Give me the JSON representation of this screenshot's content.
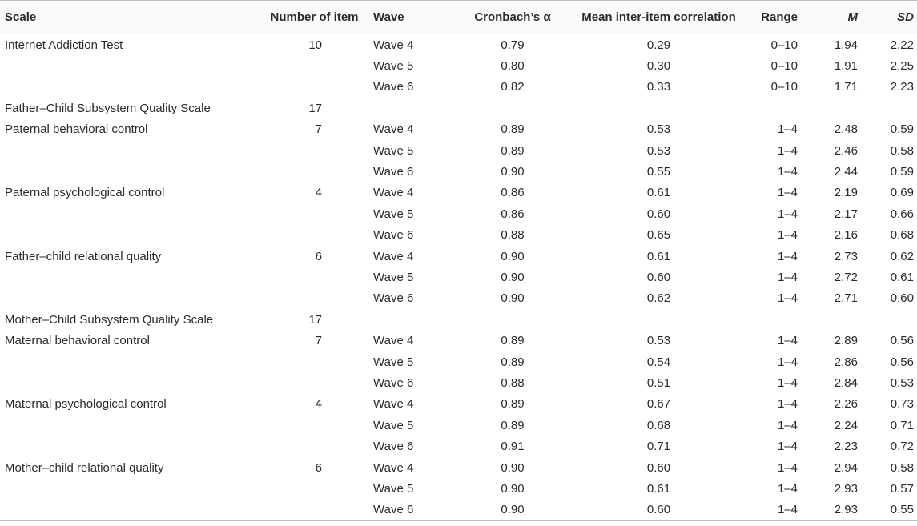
{
  "table": {
    "headers": {
      "scale": "Scale",
      "items": "Number of item",
      "wave": "Wave",
      "alpha": "Cronbach’s α",
      "mean_corr": "Mean inter-item correlation",
      "range": "Range",
      "m": "M",
      "sd": "SD"
    },
    "rows": [
      {
        "scale": "Internet Addiction Test",
        "items": "10",
        "wave": "Wave 4",
        "alpha": "0.79",
        "corr": "0.29",
        "range": "0–10",
        "m": "1.94",
        "sd": "2.22"
      },
      {
        "scale": "",
        "items": "",
        "wave": "Wave 5",
        "alpha": "0.80",
        "corr": "0.30",
        "range": "0–10",
        "m": "1.91",
        "sd": "2.25"
      },
      {
        "scale": "",
        "items": "",
        "wave": "Wave 6",
        "alpha": "0.82",
        "corr": "0.33",
        "range": "0–10",
        "m": "1.71",
        "sd": "2.23"
      },
      {
        "scale": "Father–Child Subsystem Quality Scale",
        "items": "17",
        "wave": "",
        "alpha": "",
        "corr": "",
        "range": "",
        "m": "",
        "sd": ""
      },
      {
        "scale": "Paternal behavioral control",
        "items": "7",
        "wave": "Wave 4",
        "alpha": "0.89",
        "corr": "0.53",
        "range": "1–4",
        "m": "2.48",
        "sd": "0.59"
      },
      {
        "scale": "",
        "items": "",
        "wave": "Wave 5",
        "alpha": "0.89",
        "corr": "0.53",
        "range": "1–4",
        "m": "2.46",
        "sd": "0.58"
      },
      {
        "scale": "",
        "items": "",
        "wave": "Wave 6",
        "alpha": "0.90",
        "corr": "0.55",
        "range": "1–4",
        "m": "2.44",
        "sd": "0.59"
      },
      {
        "scale": "Paternal psychological control",
        "items": "4",
        "wave": "Wave 4",
        "alpha": "0.86",
        "corr": "0.61",
        "range": "1–4",
        "m": "2.19",
        "sd": "0.69"
      },
      {
        "scale": "",
        "items": "",
        "wave": "Wave 5",
        "alpha": "0.86",
        "corr": "0.60",
        "range": "1–4",
        "m": "2.17",
        "sd": "0.66"
      },
      {
        "scale": "",
        "items": "",
        "wave": "Wave 6",
        "alpha": "0.88",
        "corr": "0.65",
        "range": "1–4",
        "m": "2.16",
        "sd": "0.68"
      },
      {
        "scale": "Father–child relational quality",
        "items": "6",
        "wave": "Wave 4",
        "alpha": "0.90",
        "corr": "0.61",
        "range": "1–4",
        "m": "2.73",
        "sd": "0.62"
      },
      {
        "scale": "",
        "items": "",
        "wave": "Wave 5",
        "alpha": "0.90",
        "corr": "0.60",
        "range": "1–4",
        "m": "2.72",
        "sd": "0.61"
      },
      {
        "scale": "",
        "items": "",
        "wave": "Wave 6",
        "alpha": "0.90",
        "corr": "0.62",
        "range": "1–4",
        "m": "2.71",
        "sd": "0.60"
      },
      {
        "scale": "Mother–Child Subsystem Quality Scale",
        "items": "17",
        "wave": "",
        "alpha": "",
        "corr": "",
        "range": "",
        "m": "",
        "sd": ""
      },
      {
        "scale": "Maternal behavioral control",
        "items": "7",
        "wave": "Wave 4",
        "alpha": "0.89",
        "corr": "0.53",
        "range": "1–4",
        "m": "2.89",
        "sd": "0.56"
      },
      {
        "scale": "",
        "items": "",
        "wave": "Wave 5",
        "alpha": "0.89",
        "corr": "0.54",
        "range": "1–4",
        "m": "2.86",
        "sd": "0.56"
      },
      {
        "scale": "",
        "items": "",
        "wave": "Wave 6",
        "alpha": "0.88",
        "corr": "0.51",
        "range": "1–4",
        "m": "2.84",
        "sd": "0.53"
      },
      {
        "scale": "Maternal psychological control",
        "items": "4",
        "wave": "Wave 4",
        "alpha": "0.89",
        "corr": "0.67",
        "range": "1–4",
        "m": "2.26",
        "sd": "0.73"
      },
      {
        "scale": "",
        "items": "",
        "wave": "Wave 5",
        "alpha": "0.89",
        "corr": "0.68",
        "range": "1–4",
        "m": "2.24",
        "sd": "0.71"
      },
      {
        "scale": "",
        "items": "",
        "wave": "Wave 6",
        "alpha": "0.91",
        "corr": "0.71",
        "range": "1–4",
        "m": "2.23",
        "sd": "0.72"
      },
      {
        "scale": "Mother–child relational quality",
        "items": "6",
        "wave": "Wave 4",
        "alpha": "0.90",
        "corr": "0.60",
        "range": "1–4",
        "m": "2.94",
        "sd": "0.58"
      },
      {
        "scale": "",
        "items": "",
        "wave": "Wave 5",
        "alpha": "0.90",
        "corr": "0.61",
        "range": "1–4",
        "m": "2.93",
        "sd": "0.57"
      },
      {
        "scale": "",
        "items": "",
        "wave": "Wave 6",
        "alpha": "0.90",
        "corr": "0.60",
        "range": "1–4",
        "m": "2.93",
        "sd": "0.55"
      }
    ]
  }
}
